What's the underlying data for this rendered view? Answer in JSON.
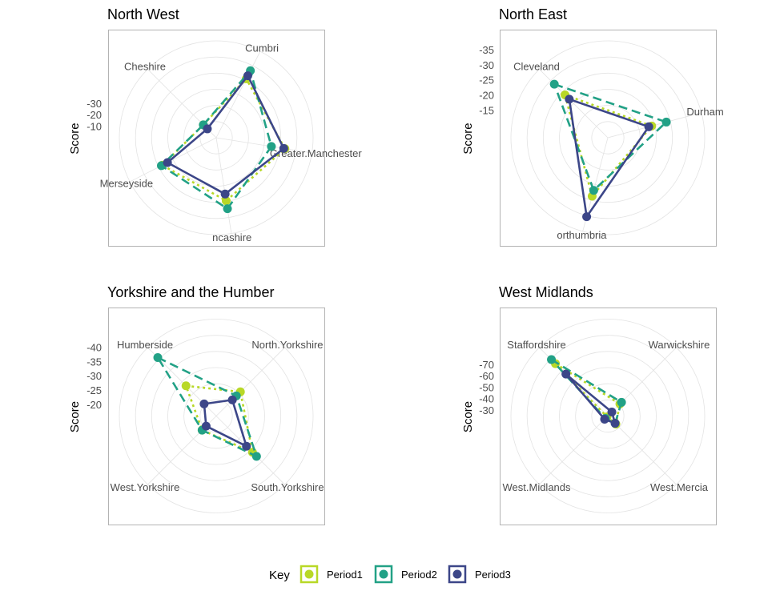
{
  "chart_data": [
    {
      "type": "radar",
      "title": "North West",
      "ylabel": "Score",
      "categories": [
        "Cheshire",
        "Cumbria",
        "Greater.Manchester",
        "Lancashire",
        "Merseyside"
      ],
      "category_labels": [
        "Cheshire",
        "Cumbri",
        "Greater.Manchester",
        "ncashire",
        "Merseyside"
      ],
      "radial_range": [
        -85,
        0
      ],
      "radial_ticks": [
        -10,
        -20,
        -30
      ],
      "series": [
        {
          "name": "Period1",
          "values": [
            -16,
            -58,
            -61,
            -56,
            -53
          ]
        },
        {
          "name": "Period2",
          "values": [
            -16,
            -66,
            -49,
            -63,
            -54
          ]
        },
        {
          "name": "Period3",
          "values": [
            -11,
            -61,
            -60,
            -50,
            -48
          ]
        }
      ]
    },
    {
      "type": "radar",
      "title": "North East",
      "ylabel": "Score",
      "categories": [
        "Cleveland",
        "Durham",
        "Northumbria"
      ],
      "category_labels": [
        "Cleveland",
        "Durham",
        "orthumbria"
      ],
      "radial_range": [
        -38,
        -6
      ],
      "radial_ticks": [
        -15,
        -20,
        -25,
        -30,
        -35
      ],
      "series": [
        {
          "name": "Period1",
          "values": [
            -26,
            -21,
            -26
          ]
        },
        {
          "name": "Period2",
          "values": [
            -31,
            -26,
            -24
          ]
        },
        {
          "name": "Period3",
          "values": [
            -24,
            -20,
            -33
          ]
        }
      ]
    },
    {
      "type": "radar",
      "title": "Yorkshire and the Humber",
      "ylabel": "Score",
      "categories": [
        "Humberside",
        "North.Yorkshire",
        "South.Yorkshire",
        "West.Yorkshire"
      ],
      "category_labels": [
        "Humberside",
        "North.Yorkshire",
        "South.Yorkshire",
        "West.Yorkshire"
      ],
      "radial_range": [
        -50,
        -16
      ],
      "radial_ticks": [
        -20,
        -25,
        -30,
        -35,
        -40
      ],
      "series": [
        {
          "name": "Period1",
          "values": [
            -31,
            -28,
            -34,
            -23
          ]
        },
        {
          "name": "Period2",
          "values": [
            -45,
            -26,
            -36,
            -23
          ]
        },
        {
          "name": "Period3",
          "values": [
            -22,
            -24,
            -31,
            -21
          ]
        }
      ]
    },
    {
      "type": "radar",
      "title": "West Midlands",
      "ylabel": "Score",
      "categories": [
        "Staffordshire",
        "Warwickshire",
        "West.Mercia",
        "West.Midlands"
      ],
      "category_labels": [
        "Staffordshire",
        "Warwickshire",
        "West.Mercia",
        "West.Midlands"
      ],
      "radial_range": [
        -110,
        -25
      ],
      "radial_ticks": [
        -30,
        -40,
        -50,
        -60,
        -70
      ],
      "series": [
        {
          "name": "Period1",
          "values": [
            -90,
            -40,
            -35,
            -26
          ]
        },
        {
          "name": "Period2",
          "values": [
            -95,
            -42,
            -34,
            -28
          ]
        },
        {
          "name": "Period3",
          "values": [
            -77,
            -30,
            -34,
            -29
          ]
        }
      ]
    }
  ],
  "legend": {
    "title": "Key",
    "position": "bottom",
    "entries": [
      "Period1",
      "Period2",
      "Period3"
    ]
  },
  "styles": {
    "Period1": {
      "color": "#b8d827",
      "dash": "3,4"
    },
    "Period2": {
      "color": "#22a186",
      "dash": "11,6"
    },
    "Period3": {
      "color": "#3c4688",
      "dash": ""
    }
  }
}
